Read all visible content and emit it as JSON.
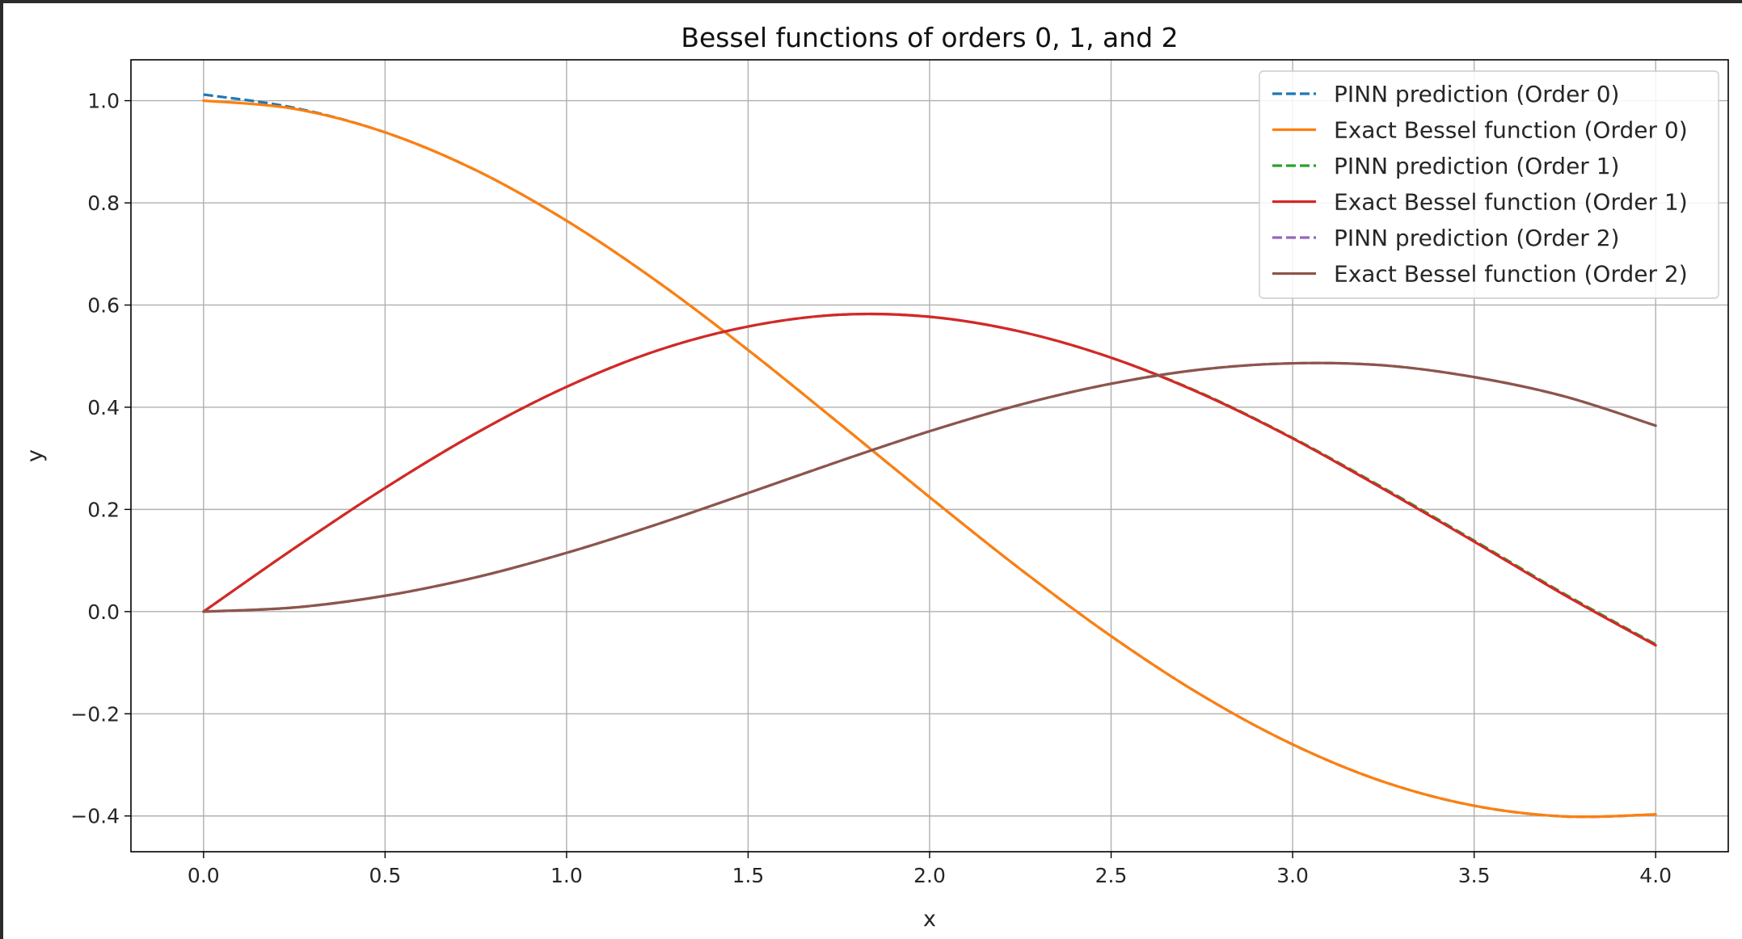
{
  "chart_data": {
    "type": "line",
    "title": "Bessel functions of orders 0, 1, and 2",
    "xlabel": "x",
    "ylabel": "y",
    "xlim": [
      -0.2,
      4.2
    ],
    "ylim": [
      -0.47,
      1.08
    ],
    "xticks": [
      0.0,
      0.5,
      1.0,
      1.5,
      2.0,
      2.5,
      3.0,
      3.5,
      4.0
    ],
    "xtick_labels": [
      "0.0",
      "0.5",
      "1.0",
      "1.5",
      "2.0",
      "2.5",
      "3.0",
      "3.5",
      "4.0"
    ],
    "yticks": [
      -0.4,
      -0.2,
      0.0,
      0.2,
      0.4,
      0.6,
      0.8,
      1.0
    ],
    "ytick_labels": [
      "−0.4",
      "−0.2",
      "0.0",
      "0.2",
      "0.4",
      "0.6",
      "0.8",
      "1.0"
    ],
    "grid": true,
    "legend_position": "top-right",
    "x": [
      0.0,
      0.25,
      0.5,
      0.75,
      1.0,
      1.25,
      1.5,
      1.75,
      2.0,
      2.25,
      2.5,
      2.75,
      3.0,
      3.25,
      3.5,
      3.75,
      4.0
    ],
    "series": [
      {
        "name": "PINN prediction (Order 0)",
        "color": "#1f77b4",
        "style": "dashed",
        "values": [
          1.012,
          0.986,
          0.938,
          0.864,
          0.765,
          0.646,
          0.512,
          0.369,
          0.224,
          0.083,
          -0.048,
          -0.164,
          -0.26,
          -0.333,
          -0.38,
          -0.401,
          -0.397
        ]
      },
      {
        "name": "Exact Bessel function (Order 0)",
        "color": "#ff7f0e",
        "style": "solid",
        "values": [
          1.0,
          0.984,
          0.938,
          0.864,
          0.765,
          0.646,
          0.512,
          0.369,
          0.224,
          0.083,
          -0.048,
          -0.164,
          -0.26,
          -0.333,
          -0.38,
          -0.401,
          -0.397
        ]
      },
      {
        "name": "PINN prediction (Order 1)",
        "color": "#2ca02c",
        "style": "dashed",
        "values": [
          0.0,
          0.124,
          0.242,
          0.349,
          0.44,
          0.511,
          0.558,
          0.581,
          0.577,
          0.548,
          0.497,
          0.427,
          0.34,
          0.242,
          0.139,
          0.034,
          -0.064
        ]
      },
      {
        "name": "Exact Bessel function (Order 1)",
        "color": "#d62728",
        "style": "solid",
        "values": [
          0.0,
          0.124,
          0.242,
          0.349,
          0.44,
          0.511,
          0.558,
          0.581,
          0.577,
          0.548,
          0.497,
          0.426,
          0.339,
          0.24,
          0.137,
          0.032,
          -0.066
        ]
      },
      {
        "name": "PINN prediction (Order 2)",
        "color": "#9467bd",
        "style": "dashed",
        "values": [
          0.0,
          0.008,
          0.031,
          0.067,
          0.115,
          0.171,
          0.232,
          0.294,
          0.353,
          0.405,
          0.446,
          0.474,
          0.486,
          0.482,
          0.459,
          0.421,
          0.364
        ]
      },
      {
        "name": "Exact Bessel function (Order 2)",
        "color": "#8c564b",
        "style": "solid",
        "values": [
          0.0,
          0.008,
          0.031,
          0.067,
          0.115,
          0.171,
          0.232,
          0.294,
          0.353,
          0.405,
          0.446,
          0.474,
          0.486,
          0.482,
          0.459,
          0.421,
          0.364
        ]
      }
    ]
  }
}
